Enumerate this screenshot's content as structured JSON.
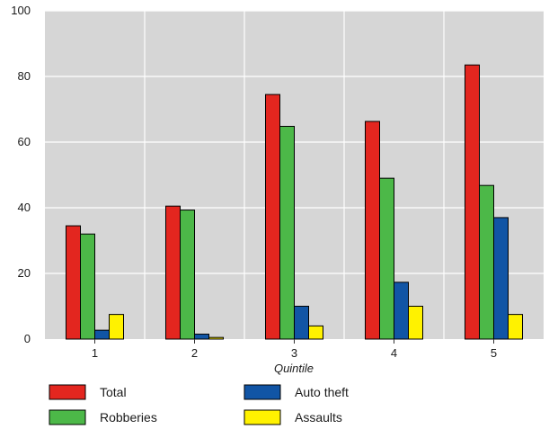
{
  "chart_data": {
    "type": "bar",
    "xlabel": "Quintile",
    "ylabel": "",
    "ylim": [
      0,
      100
    ],
    "yticks": [
      0,
      20,
      40,
      60,
      80,
      100
    ],
    "categories": [
      "1",
      "2",
      "3",
      "4",
      "5"
    ],
    "grid": "vertical and horizontal white lines on grey background",
    "legend_position": "bottom",
    "series": [
      {
        "name": "Total",
        "color": "#e3261f",
        "values": [
          34.5,
          40.5,
          74.5,
          66.3,
          83.5
        ]
      },
      {
        "name": "Robberies",
        "color": "#4cb848",
        "values": [
          32,
          39.3,
          64.8,
          49,
          46.8
        ]
      },
      {
        "name": "Auto theft",
        "color": "#1155a5",
        "values": [
          2.7,
          1.5,
          10,
          17.3,
          37
        ]
      },
      {
        "name": "Assaults",
        "color": "#fff200",
        "values": [
          7.5,
          0.5,
          4,
          10,
          7.5
        ]
      }
    ]
  }
}
